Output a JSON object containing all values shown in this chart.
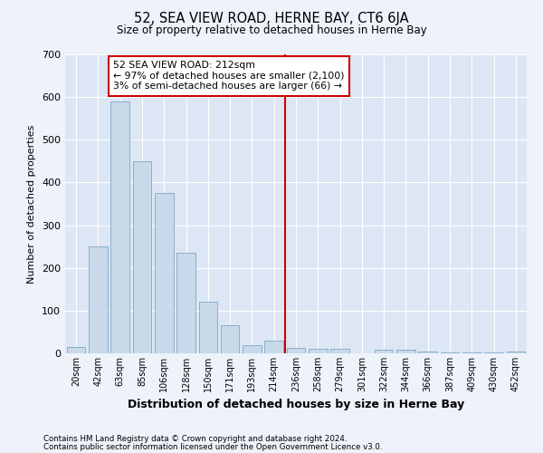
{
  "title": "52, SEA VIEW ROAD, HERNE BAY, CT6 6JA",
  "subtitle": "Size of property relative to detached houses in Herne Bay",
  "xlabel": "Distribution of detached houses by size in Herne Bay",
  "ylabel": "Number of detached properties",
  "bar_color": "#c8d9ea",
  "bar_edge_color": "#8aafc8",
  "background_color": "#dce6f5",
  "fig_background_color": "#eef2fa",
  "grid_color": "#ffffff",
  "vline_color": "#cc0000",
  "categories": [
    "20sqm",
    "42sqm",
    "63sqm",
    "85sqm",
    "106sqm",
    "128sqm",
    "150sqm",
    "171sqm",
    "193sqm",
    "214sqm",
    "236sqm",
    "258sqm",
    "279sqm",
    "301sqm",
    "322sqm",
    "344sqm",
    "366sqm",
    "387sqm",
    "409sqm",
    "430sqm",
    "452sqm"
  ],
  "values": [
    15,
    250,
    590,
    450,
    375,
    235,
    120,
    65,
    20,
    30,
    12,
    10,
    10,
    0,
    8,
    8,
    5,
    3,
    3,
    3,
    5
  ],
  "vline_position": 9.5,
  "annotation_line1": "52 SEA VIEW ROAD: 212sqm",
  "annotation_line2": "← 97% of detached houses are smaller (2,100)",
  "annotation_line3": "3% of semi-detached houses are larger (66) →",
  "ylim": [
    0,
    700
  ],
  "yticks": [
    0,
    100,
    200,
    300,
    400,
    500,
    600,
    700
  ],
  "footer_line1": "Contains HM Land Registry data © Crown copyright and database right 2024.",
  "footer_line2": "Contains public sector information licensed under the Open Government Licence v3.0."
}
